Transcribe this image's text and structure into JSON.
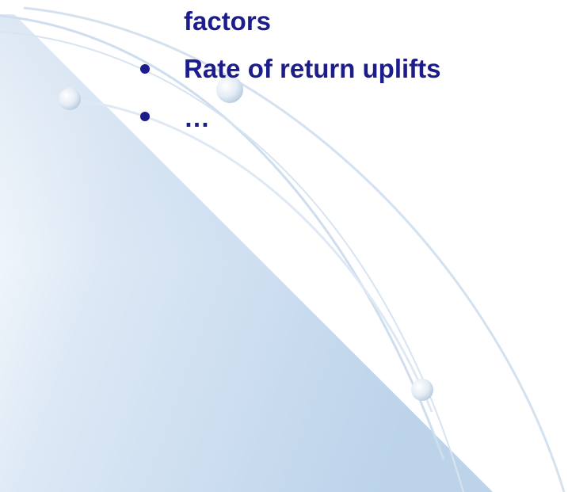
{
  "slide": {
    "continuation": "factors",
    "bullets": [
      "Rate of return uplifts",
      "…"
    ]
  }
}
